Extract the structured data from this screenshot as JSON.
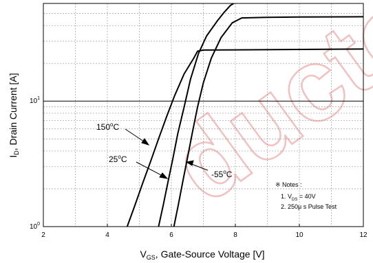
{
  "chart_data": {
    "type": "line",
    "xlabel": "V",
    "xlabel_sub": "GS",
    "xlabel_rest": ", Gate-Source Voltage [V]",
    "ylabel": "I",
    "ylabel_sub": "D",
    "ylabel_rest": ", Drain Current [A]",
    "xlim": [
      2,
      12
    ],
    "ylim": [
      1,
      60
    ],
    "yscale": "log",
    "grid": "dashed",
    "x_ticks": [
      {
        "value": 2,
        "label": "2"
      },
      {
        "value": 4,
        "label": "4"
      },
      {
        "value": 6,
        "label": "6"
      },
      {
        "value": 8,
        "label": "8"
      },
      {
        "value": 10,
        "label": "10"
      },
      {
        "value": 12,
        "label": "12"
      }
    ],
    "y_ticks": [
      {
        "value": 1,
        "base": "10",
        "exp": "0"
      },
      {
        "value": 10,
        "base": "10",
        "exp": "1"
      }
    ],
    "series": [
      {
        "name": "150°C",
        "color": "#000000",
        "points": [
          [
            4.62,
            1.0
          ],
          [
            4.85,
            1.45
          ],
          [
            5.1,
            2.2
          ],
          [
            5.35,
            3.3
          ],
          [
            5.6,
            5.0
          ],
          [
            5.85,
            7.5
          ],
          [
            6.1,
            11.0
          ],
          [
            6.4,
            16.5
          ],
          [
            6.7,
            22.0
          ],
          [
            6.82,
            25.0
          ],
          [
            7.0,
            25.5
          ],
          [
            8,
            25.6
          ],
          [
            10,
            25.8
          ],
          [
            12,
            26.0
          ]
        ]
      },
      {
        "name": "25°C",
        "color": "#000000",
        "points": [
          [
            5.6,
            1.0
          ],
          [
            5.75,
            1.5
          ],
          [
            5.9,
            2.3
          ],
          [
            6.05,
            3.5
          ],
          [
            6.2,
            5.5
          ],
          [
            6.4,
            9.0
          ],
          [
            6.6,
            15.0
          ],
          [
            6.85,
            24.0
          ],
          [
            7.1,
            33.0
          ],
          [
            7.45,
            44.0
          ],
          [
            7.65,
            51.0
          ],
          [
            7.85,
            58.0
          ],
          [
            7.95,
            60.0
          ]
        ]
      },
      {
        "name": "-55°C",
        "color": "#000000",
        "points": [
          [
            6.08,
            1.0
          ],
          [
            6.22,
            1.5
          ],
          [
            6.36,
            2.3
          ],
          [
            6.5,
            3.5
          ],
          [
            6.65,
            5.5
          ],
          [
            6.82,
            9.0
          ],
          [
            7.0,
            14.0
          ],
          [
            7.25,
            22.0
          ],
          [
            7.55,
            32.0
          ],
          [
            7.9,
            42.0
          ],
          [
            8.2,
            46.0
          ],
          [
            9,
            46.5
          ],
          [
            10,
            46.8
          ],
          [
            12,
            47.0
          ]
        ]
      }
    ],
    "annotations": [
      {
        "prefix": "150",
        "sup": "o",
        "suffix": "C"
      },
      {
        "prefix": "25",
        "sup": "o",
        "suffix": "C"
      },
      {
        "prefix": "-55",
        "sup": "o",
        "suffix": "C"
      }
    ],
    "notes": {
      "title": "※ Notes :",
      "line1_prefix": "1. V",
      "line1_sub": "DS",
      "line1_suffix": " = 40V",
      "line2": "2. 250μ s Pulse Test"
    }
  },
  "watermark": {
    "text": "ductor",
    "color": "#f1c0c0"
  }
}
